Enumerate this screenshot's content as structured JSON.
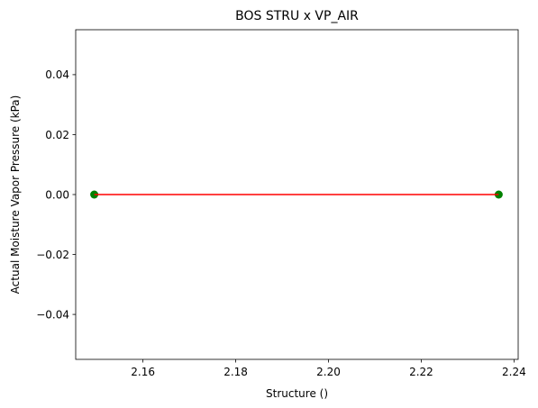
{
  "chart_data": {
    "type": "scatter",
    "title": "BOS STRU x VP_AIR",
    "xlabel": "Structure ()",
    "ylabel": "Actual Moisture Vapor Pressure (kPa)",
    "xlim": [
      2.1455,
      2.2409
    ],
    "ylim": [
      -0.055,
      0.055
    ],
    "xticks": [
      2.16,
      2.18,
      2.2,
      2.22,
      2.24
    ],
    "xtick_labels": [
      "2.16",
      "2.18",
      "2.20",
      "2.22",
      "2.24"
    ],
    "yticks": [
      -0.04,
      -0.02,
      0.0,
      0.02,
      0.04
    ],
    "ytick_labels": [
      "−0.04",
      "−0.02",
      "0.00",
      "0.02",
      "0.04"
    ],
    "grid": false,
    "series": [
      {
        "kind": "points",
        "color": "#008000",
        "points": [
          {
            "x": 2.1495,
            "y": 0.0
          },
          {
            "x": 2.2367,
            "y": 0.0
          }
        ]
      },
      {
        "kind": "line",
        "color": "#ff0000",
        "points": [
          {
            "x": 2.1495,
            "y": 0.0
          },
          {
            "x": 2.2367,
            "y": 0.0
          }
        ]
      }
    ]
  }
}
